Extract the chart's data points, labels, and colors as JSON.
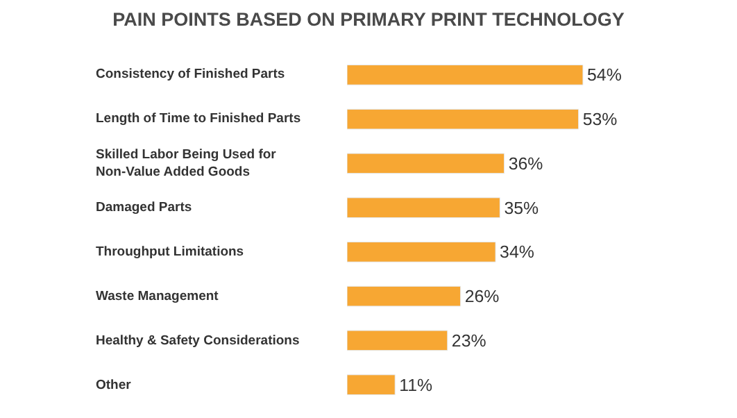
{
  "chart_data": {
    "type": "bar",
    "orientation": "horizontal",
    "title": "PAIN POINTS BASED ON PRIMARY PRINT TECHNOLOGY",
    "categories": [
      "Consistency of Finished Parts",
      "Length of Time to Finished Parts",
      "Skilled Labor Being Used for\nNon-Value Added Goods",
      "Damaged Parts",
      "Throughput Limitations",
      "Waste Management",
      "Healthy & Safety Considerations",
      "Other"
    ],
    "values": [
      54,
      53,
      36,
      35,
      34,
      26,
      23,
      11
    ],
    "value_labels": [
      "54%",
      "53%",
      "36%",
      "35%",
      "34%",
      "26%",
      "23%",
      "11%"
    ],
    "color": "#f7a733"
  }
}
